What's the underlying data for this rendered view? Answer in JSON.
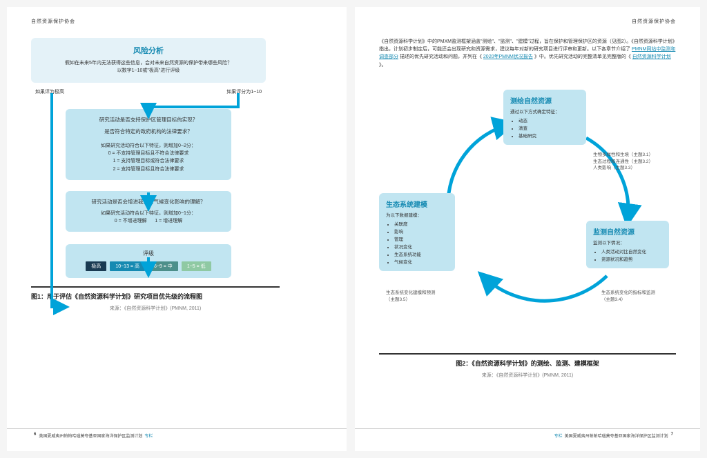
{
  "header": {
    "org": "自然资源保护协会"
  },
  "page1": {
    "flowchart": {
      "top_title": "风险分析",
      "top_q1": "假如在未来5年内无法获得这些信息，会对未来自然资源的保护带来哪些风险？",
      "top_q2": "以数字1~10或\"极高\"进行评级",
      "branch_left": "如果评为极高",
      "branch_right": "如果评分为1~10",
      "mid1_q1": "研究活动是否支持保护区管理目标的实现？",
      "mid1_q2": "是否符合特定的政府机构的法律要求？",
      "mid1_intro": "如果研究活动符合以下特征，则增加0~2分：",
      "mid1_a": "0 = 不支持管理目标且不符合法律要求",
      "mid1_b": "1 = 支持管理目标或符合法律要求",
      "mid1_c": "2 = 支持管理目标且符合法律要求",
      "mid2_q": "研究活动是否会增进我们对气候变化影响的理解？",
      "mid2_intro": "如果研究活动符合以下特征，则增加0~1分：",
      "mid2_a": "0 = 不增进理解",
      "mid2_b": "1 = 增进理解",
      "rating_title": "评级",
      "pills": [
        {
          "label": "极高",
          "color": "#1a3a52"
        },
        {
          "label": "10~13 = 高",
          "color": "#168ab2"
        },
        {
          "label": "6~9 = 中",
          "color": "#4d8f8a"
        },
        {
          "label": "1~5 = 低",
          "color": "#8fc9a3"
        }
      ]
    },
    "caption_title": "图1：用于评估《自然资源科学计划》研究项目优先级的流程图",
    "caption_src": "来源：《自然资源科学计划》(PMNM, 2011)",
    "footer_text": "美国夏威夷州帕帕哈瑙莫夸基亚国家海洋保护区监测计划",
    "footer_accent": "专栏",
    "page_num": "6"
  },
  "page2": {
    "para": "《自然资源科学计划》中的PMXM监测框架涵盖\"测绘\"、\"监测\"、\"建模\"过程，旨在保护和管理保护区的资源（见图2）。《自然资源科学计划》指出，计划初步制定后，可能还会出现研究和资源需求，建议每年对新的研究项目进行评审和更新。以下各章节介绍了",
    "link1": "PMNM网站中监测和调查部分",
    "para2": "描述的优先研究活动和问题，并列在《",
    "link2": "2020年PMNM状况报告",
    "para3": "》中。优先研究活动的完整清单见完整版的《",
    "link3": "自然资源科学计划",
    "para4": "》。",
    "box_map": {
      "title": "测绘自然资源",
      "sub": "通过以下方式确定特征：",
      "items": [
        "动态",
        "清查",
        "基础研究"
      ]
    },
    "box_model": {
      "title": "生态系统建模",
      "sub": "为以下数据建模：",
      "items": [
        "关联度",
        "影响",
        "管理",
        "状况变化",
        "生态系统功能",
        "气候变化"
      ]
    },
    "box_monitor": {
      "title": "监测自然资源",
      "sub": "监测以下情况：",
      "items": [
        "人类活动对比自然变化",
        "资源状况和趋势"
      ]
    },
    "label_map": "生物多样性和生境（主题3.1）\n生态过程和连通性（主题3.2）\n人类影响（主题3.3）",
    "label_model": "生态系统变化建模和预测\n（主题3.5）",
    "label_monitor": "生态系统变化的指标和监测\n（主题3.4）",
    "caption_title": "图2：《自然资源科学计划》的测绘、监测、建模框架",
    "caption_src": "来源：《自然资源科学计划》(PMNM, 2011)",
    "footer_text": "美国夏威夷州帕帕哈瑙莫夸基亚国家海洋保护区监测计划",
    "footer_accent": "专栏",
    "page_num": "7"
  },
  "arrow_color": "#00a3d9"
}
